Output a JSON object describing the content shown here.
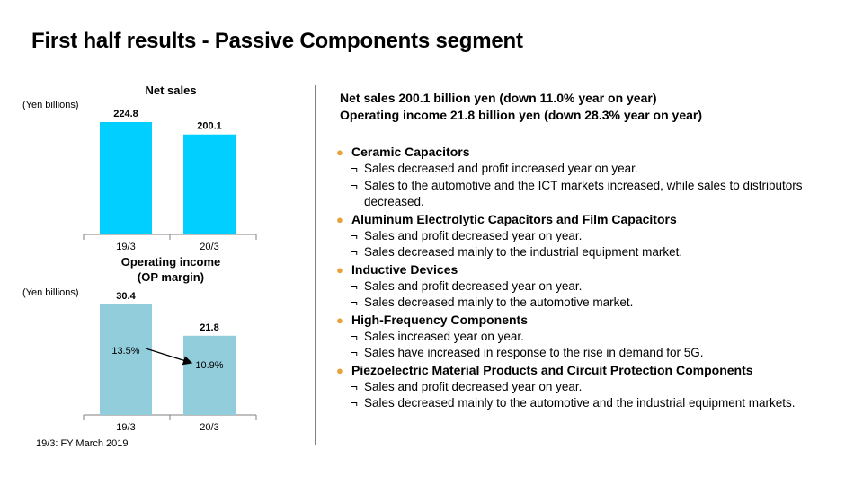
{
  "title": "First half results - Passive Components segment",
  "footnote": "19/3: FY March 2019",
  "summary": {
    "line1": "Net sales  200.1 billion yen (down 11.0% year on year)",
    "line2": "Operating income 21.8 billion yen (down 28.3% year on year)"
  },
  "sections": [
    {
      "title": "Ceramic Capacitors",
      "items": [
        "Sales decreased and profit increased year on year.",
        "Sales to the automotive and the ICT markets increased, while sales to distributors decreased."
      ]
    },
    {
      "title": "Aluminum Electrolytic Capacitors and Film Capacitors",
      "items": [
        "Sales and profit decreased year on year.",
        "Sales decreased mainly to the industrial equipment market."
      ]
    },
    {
      "title": "Inductive Devices",
      "items": [
        "Sales and profit decreased year on year.",
        "Sales decreased mainly to the automotive market."
      ]
    },
    {
      "title": "High-Frequency Components",
      "items": [
        "Sales increased year on year.",
        "Sales have increased in response to the rise in demand for 5G."
      ]
    },
    {
      "title": "Piezoelectric Material Products and Circuit Protection Components",
      "items": [
        "Sales and profit decreased year on year.",
        "Sales decreased mainly to the automotive and the industrial equipment markets."
      ]
    }
  ],
  "bullet_glyph": "●",
  "sub_glyph": "¬",
  "colors": {
    "net_sales_bar": "#00cfff",
    "op_income_bar": "#92cddc",
    "bullet": "#e8a13a"
  },
  "chart_data": [
    {
      "type": "bar",
      "title": "Net sales",
      "unit_label": "(Yen billions)",
      "categories": [
        "19/3",
        "20/3"
      ],
      "values": [
        224.8,
        200.1
      ],
      "value_labels": [
        "224.8",
        "200.1"
      ]
    },
    {
      "type": "bar",
      "title": [
        "Operating income",
        "(OP margin)"
      ],
      "unit_label": "(Yen billions)",
      "categories": [
        "19/3",
        "20/3"
      ],
      "values": [
        30.4,
        21.8
      ],
      "value_labels": [
        "30.4",
        "21.8"
      ],
      "margins": [
        "13.5%",
        "10.9%"
      ]
    }
  ]
}
